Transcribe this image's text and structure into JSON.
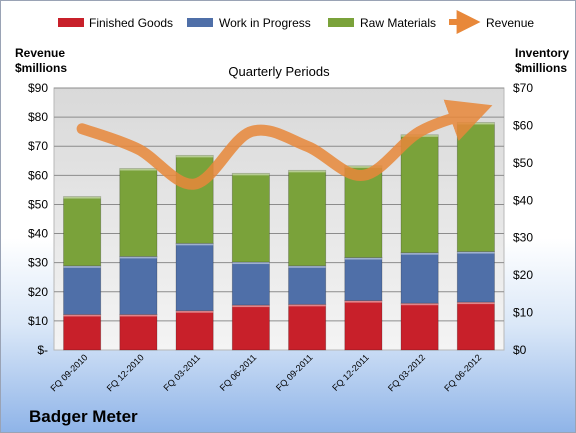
{
  "company": "Badger Meter",
  "chart_data": {
    "type": "bar",
    "stacked": true,
    "title": "Quarterly Periods",
    "categories": [
      "FQ 09-2010",
      "FQ 12-2010",
      "FQ 03-2011",
      "FQ 06-2011",
      "FQ 09-2011",
      "FQ 12-2011",
      "FQ 03-2012",
      "FQ 06-2012"
    ],
    "y_left": {
      "label_line1": "Revenue",
      "label_line2": "$millions",
      "ylim": [
        0,
        90
      ],
      "ticks": [
        "$-",
        "$10",
        "$20",
        "$30",
        "$40",
        "$50",
        "$60",
        "$70",
        "$80",
        "$90"
      ]
    },
    "y_right": {
      "label_line1": "Inventory",
      "label_line2": "$millions",
      "ylim": [
        0,
        70
      ],
      "ticks": [
        "$0",
        "$10",
        "$20",
        "$30",
        "$40",
        "$50",
        "$60",
        "$70"
      ]
    },
    "series": [
      {
        "name": "Finished Goods",
        "axis": "right",
        "color": "#c8202a",
        "values": [
          9.5,
          9.5,
          10.5,
          12,
          12.2,
          13.2,
          12.5,
          12.8
        ]
      },
      {
        "name": "Work in Progress",
        "axis": "right",
        "color": "#4f6fa8",
        "values": [
          13,
          15.5,
          18,
          11.5,
          10.3,
          11.5,
          13.5,
          13.5
        ]
      },
      {
        "name": "Raw Materials",
        "axis": "right",
        "color": "#7aa23a",
        "values": [
          18.5,
          23.5,
          23.5,
          23.7,
          25.5,
          24.5,
          31.5,
          34.5
        ]
      },
      {
        "name": "Revenue",
        "axis": "left",
        "type": "line",
        "color": "#e8883a",
        "values": [
          76,
          69,
          57,
          75,
          70,
          60,
          75,
          82
        ]
      }
    ],
    "grid": true,
    "legend": "top"
  }
}
